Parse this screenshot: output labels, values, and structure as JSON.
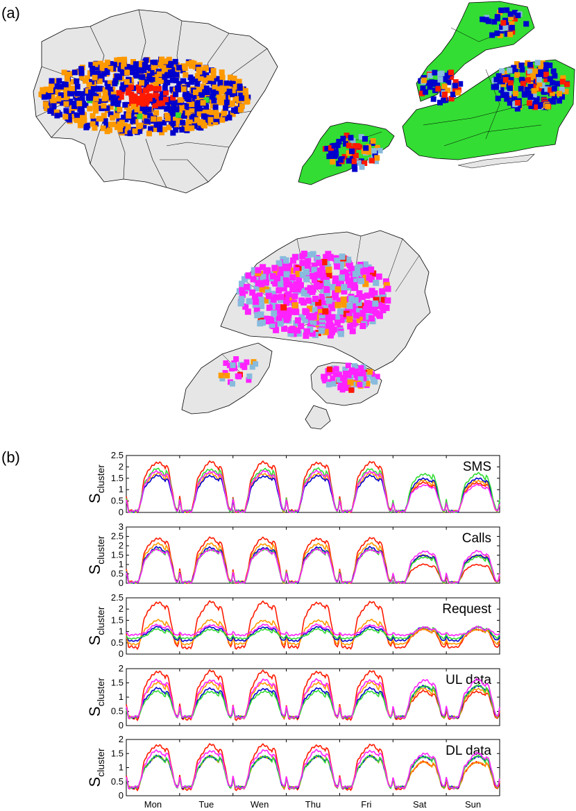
{
  "labels": {
    "a": "(a)",
    "b": "(b)"
  },
  "ylabel": {
    "main": "S",
    "sub": "cluster"
  },
  "colors": {
    "red": "#ff1a00",
    "orange": "#ff9900",
    "blue": "#0000cc",
    "green": "#33dd33",
    "magenta": "#ff22ff",
    "lightblue": "#88bbdd",
    "landgray": "#e6e6e6"
  },
  "chart_data": {
    "type": "line",
    "days": [
      "Mon",
      "Tue",
      "Wen",
      "Thu",
      "Fri",
      "Sat",
      "Sun"
    ],
    "panels": [
      {
        "title": "SMS",
        "ylim": [
          0,
          2.5
        ],
        "yticks": [
          "0",
          "0.5",
          "1",
          "1.5",
          "2",
          "2.5"
        ],
        "series": [
          {
            "color": "#ff1a00",
            "weekday_peak": 2.2,
            "weekend_peak": 1.3,
            "night": 0.05
          },
          {
            "color": "#ff9900",
            "weekday_peak": 1.7,
            "weekend_peak": 1.4,
            "night": 0.05
          },
          {
            "color": "#0000cc",
            "weekday_peak": 1.6,
            "weekend_peak": 1.5,
            "night": 0.05
          },
          {
            "color": "#33dd33",
            "weekday_peak": 1.9,
            "weekend_peak": 1.7,
            "night": 0.05
          },
          {
            "color": "#ff22ff",
            "weekday_peak": 1.8,
            "weekend_peak": 1.2,
            "night": 0.05
          }
        ]
      },
      {
        "title": "Calls",
        "ylim": [
          0,
          3
        ],
        "yticks": [
          "0",
          "0.5",
          "1",
          "1.5",
          "2",
          "2.5",
          "3"
        ],
        "series": [
          {
            "color": "#ff1a00",
            "weekday_peak": 2.4,
            "weekend_peak": 1.0,
            "night": 0.05
          },
          {
            "color": "#ff9900",
            "weekday_peak": 2.1,
            "weekend_peak": 1.5,
            "night": 0.05
          },
          {
            "color": "#0000cc",
            "weekday_peak": 1.9,
            "weekend_peak": 1.5,
            "night": 0.05
          },
          {
            "color": "#33dd33",
            "weekday_peak": 1.8,
            "weekend_peak": 1.4,
            "night": 0.05
          },
          {
            "color": "#ff22ff",
            "weekday_peak": 1.8,
            "weekend_peak": 1.7,
            "night": 0.05
          }
        ]
      },
      {
        "title": "Request",
        "ylim": [
          0,
          2.5
        ],
        "yticks": [
          "0",
          "0.5",
          "1",
          "1.5",
          "2",
          "2.5"
        ],
        "series": [
          {
            "color": "#ff1a00",
            "weekday_peak": 2.3,
            "weekend_peak": 1.1,
            "night": 0.3
          },
          {
            "color": "#ff9900",
            "weekday_peak": 1.5,
            "weekend_peak": 1.1,
            "night": 0.45
          },
          {
            "color": "#0000cc",
            "weekday_peak": 1.2,
            "weekend_peak": 1.2,
            "night": 0.6
          },
          {
            "color": "#33dd33",
            "weekday_peak": 1.1,
            "weekend_peak": 1.2,
            "night": 0.7
          },
          {
            "color": "#ff22ff",
            "weekday_peak": 1.3,
            "weekend_peak": 1.2,
            "night": 0.85
          }
        ]
      },
      {
        "title": "UL data",
        "ylim": [
          0,
          2
        ],
        "yticks": [
          "0",
          "0.5",
          "1",
          "1.5",
          "2"
        ],
        "series": [
          {
            "color": "#ff1a00",
            "weekday_peak": 1.9,
            "weekend_peak": 1.2,
            "night": 0.25
          },
          {
            "color": "#ff9900",
            "weekday_peak": 1.5,
            "weekend_peak": 1.3,
            "night": 0.3
          },
          {
            "color": "#0000cc",
            "weekday_peak": 1.3,
            "weekend_peak": 1.4,
            "night": 0.3
          },
          {
            "color": "#33dd33",
            "weekday_peak": 1.2,
            "weekend_peak": 1.4,
            "night": 0.3
          },
          {
            "color": "#ff22ff",
            "weekday_peak": 1.6,
            "weekend_peak": 1.6,
            "night": 0.3
          }
        ]
      },
      {
        "title": "DL data",
        "ylim": [
          0,
          2
        ],
        "yticks": [
          "0",
          "0.5",
          "1",
          "1.5",
          "2"
        ],
        "series": [
          {
            "color": "#ff1a00",
            "weekday_peak": 1.8,
            "weekend_peak": 1.2,
            "night": 0.25
          },
          {
            "color": "#ff9900",
            "weekday_peak": 1.4,
            "weekend_peak": 1.2,
            "night": 0.3
          },
          {
            "color": "#0000cc",
            "weekday_peak": 1.4,
            "weekend_peak": 1.4,
            "night": 0.3
          },
          {
            "color": "#33dd33",
            "weekday_peak": 1.4,
            "weekend_peak": 1.4,
            "night": 0.3
          },
          {
            "color": "#ff22ff",
            "weekday_peak": 1.6,
            "weekend_peak": 1.5,
            "night": 0.3
          }
        ]
      }
    ]
  }
}
